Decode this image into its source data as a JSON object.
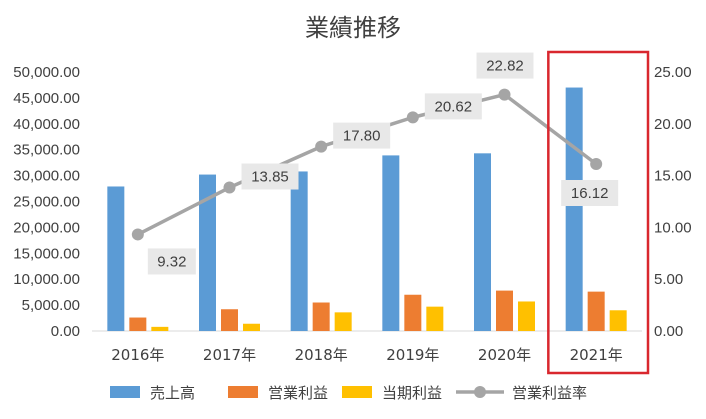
{
  "chart_data": {
    "type": "bar",
    "title": "業績推移",
    "categories": [
      "2016年",
      "2017年",
      "2018年",
      "2019年",
      "2020年",
      "2021年"
    ],
    "series": [
      {
        "name": "売上高",
        "type": "bar",
        "axis": "left",
        "color": "#5B9BD5",
        "values": [
          27900,
          30200,
          30800,
          33900,
          34300,
          47000
        ]
      },
      {
        "name": "営業利益",
        "type": "bar",
        "axis": "left",
        "color": "#ED7D31",
        "values": [
          2600,
          4200,
          5500,
          7000,
          7800,
          7600
        ]
      },
      {
        "name": "当期利益",
        "type": "bar",
        "axis": "left",
        "color": "#FFC000",
        "values": [
          800,
          1400,
          3600,
          4700,
          5700,
          4000
        ]
      },
      {
        "name": "営業利益率",
        "type": "line",
        "axis": "right",
        "color": "#A5A5A5",
        "values": [
          9.32,
          13.85,
          17.8,
          20.62,
          22.82,
          16.12
        ],
        "labels": [
          "9.32",
          "13.85",
          "17.80",
          "20.62",
          "22.82",
          "16.12"
        ]
      }
    ],
    "y_left": {
      "min": 0,
      "max": 50000,
      "ticks": [
        "0.00",
        "5,000.00",
        "10,000.00",
        "15,000.00",
        "20,000.00",
        "25,000.00",
        "30,000.00",
        "35,000.00",
        "40,000.00",
        "45,000.00",
        "50,000.00"
      ]
    },
    "y_right": {
      "min": 0,
      "max": 25,
      "ticks": [
        "0.00",
        "5.00",
        "10.00",
        "15.00",
        "20.00",
        "25.00"
      ]
    },
    "grid": false,
    "legend_position": "bottom",
    "highlight": {
      "category": "2021年",
      "color": "#D9272E"
    }
  }
}
